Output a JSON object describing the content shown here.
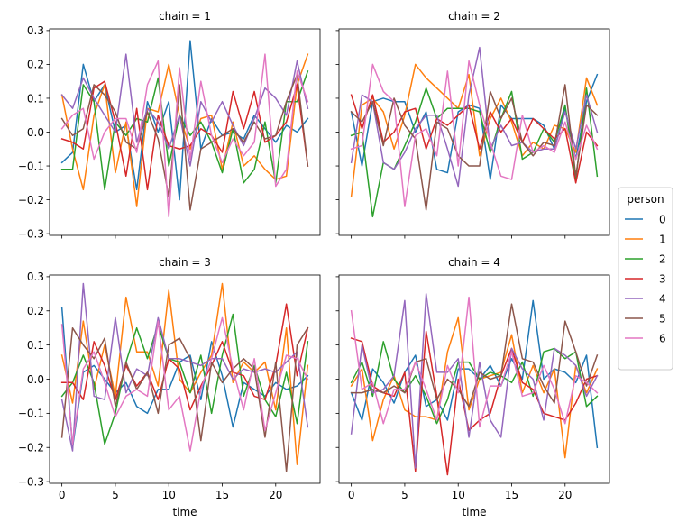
{
  "chart_data": {
    "type": "line",
    "xlabel": "time",
    "xlim": [
      -1.15,
      24.15
    ],
    "ylim": [
      -0.305,
      0.305
    ],
    "x_ticks": [
      0,
      5,
      10,
      15,
      20
    ],
    "y_ticks": [
      -0.3,
      -0.2,
      -0.1,
      0.0,
      0.1,
      0.2,
      0.3
    ],
    "x_tick_labels": [
      "0",
      "5",
      "10",
      "15",
      "20"
    ],
    "y_tick_labels": [
      "−0.3",
      "−0.2",
      "−0.1",
      "0.0",
      "0.1",
      "0.2",
      "0.3"
    ],
    "grid": false,
    "legend": {
      "title": "person",
      "placement": "right",
      "entries": [
        "0",
        "1",
        "2",
        "3",
        "4",
        "5",
        "6"
      ]
    },
    "colors": [
      "#1f77b4",
      "#ff7f0e",
      "#2ca02c",
      "#d62728",
      "#9467bd",
      "#8c564b",
      "#e377c2"
    ],
    "x": [
      0,
      1,
      2,
      3,
      4,
      5,
      6,
      7,
      8,
      9,
      10,
      11,
      12,
      13,
      14,
      15,
      16,
      17,
      18,
      19,
      20,
      21,
      22,
      23
    ],
    "facets": [
      {
        "title": "chain = 1",
        "series": [
          {
            "name": "0",
            "values": [
              -0.09,
              -0.06,
              0.2,
              0.09,
              0.14,
              0.0,
              0.02,
              -0.17,
              0.09,
              0.0,
              0.09,
              -0.2,
              0.27,
              -0.05,
              0.04,
              -0.01,
              0.0,
              -0.02,
              0.05,
              0.01,
              -0.03,
              0.02,
              -0.0,
              0.04
            ]
          },
          {
            "name": "1",
            "values": [
              0.11,
              -0.05,
              -0.17,
              0.05,
              0.14,
              -0.12,
              0.03,
              -0.22,
              0.07,
              0.06,
              0.2,
              0.05,
              -0.05,
              0.04,
              0.05,
              -0.11,
              0.03,
              -0.1,
              -0.07,
              -0.11,
              -0.14,
              -0.13,
              0.14,
              0.23
            ]
          },
          {
            "name": "2",
            "values": [
              -0.11,
              -0.11,
              0.14,
              0.09,
              -0.17,
              0.03,
              -0.01,
              0.04,
              0.03,
              0.16,
              -0.1,
              0.05,
              -0.01,
              0.03,
              -0.03,
              -0.12,
              0.01,
              -0.15,
              -0.11,
              0.03,
              -0.15,
              0.09,
              0.09,
              0.18
            ]
          },
          {
            "name": "3",
            "values": [
              -0.02,
              -0.03,
              -0.05,
              0.13,
              0.15,
              0.03,
              -0.13,
              0.07,
              -0.17,
              0.05,
              -0.04,
              -0.05,
              -0.04,
              0.01,
              -0.01,
              -0.06,
              0.12,
              0.01,
              0.12,
              -0.03,
              -0.01,
              0.03,
              0.14,
              -0.1
            ]
          },
          {
            "name": "4",
            "values": [
              0.11,
              0.07,
              0.16,
              0.1,
              0.05,
              0.0,
              0.23,
              -0.03,
              0.07,
              0.03,
              -0.05,
              0.05,
              -0.1,
              0.09,
              0.03,
              0.09,
              0.02,
              -0.04,
              0.04,
              0.13,
              0.1,
              0.05,
              0.21,
              0.07
            ]
          },
          {
            "name": "5",
            "values": [
              0.04,
              -0.01,
              0.01,
              0.14,
              0.11,
              0.06,
              -0.03,
              -0.05,
              0.06,
              -0.02,
              -0.19,
              0.14,
              -0.23,
              -0.05,
              -0.03,
              -0.01,
              0.01,
              -0.03,
              0.03,
              -0.02,
              -0.01,
              0.09,
              0.17,
              -0.1
            ]
          },
          {
            "name": "6",
            "values": [
              0.01,
              0.05,
              0.07,
              -0.08,
              0.0,
              0.04,
              0.04,
              -0.06,
              0.14,
              0.21,
              -0.25,
              0.19,
              -0.08,
              0.15,
              -0.01,
              -0.09,
              -0.02,
              -0.07,
              -0.03,
              0.23,
              -0.16,
              -0.11,
              0.18,
              0.09
            ]
          }
        ]
      },
      {
        "title": "chain = 2",
        "series": [
          {
            "name": "0",
            "values": [
              0.06,
              -0.1,
              0.09,
              0.1,
              0.09,
              0.09,
              0.0,
              0.06,
              -0.11,
              -0.12,
              0.06,
              0.08,
              0.07,
              -0.14,
              0.08,
              0.04,
              0.04,
              0.04,
              0.02,
              -0.05,
              0.07,
              -0.08,
              0.09,
              0.17
            ]
          },
          {
            "name": "1",
            "values": [
              -0.19,
              0.08,
              0.1,
              0.06,
              -0.05,
              0.05,
              0.2,
              0.16,
              0.13,
              0.1,
              0.07,
              0.17,
              -0.07,
              0.04,
              0.1,
              0.03,
              -0.07,
              -0.03,
              -0.05,
              0.02,
              0.01,
              -0.06,
              0.16,
              0.08
            ]
          },
          {
            "name": "2",
            "values": [
              -0.01,
              -0.0,
              -0.25,
              -0.09,
              -0.11,
              -0.04,
              0.03,
              0.13,
              0.04,
              0.07,
              0.07,
              0.07,
              0.06,
              -0.06,
              0.04,
              0.12,
              -0.08,
              -0.06,
              0.01,
              -0.03,
              0.08,
              -0.14,
              0.13,
              -0.13
            ]
          },
          {
            "name": "3",
            "values": [
              0.11,
              0.01,
              0.11,
              -0.03,
              -0.0,
              0.06,
              0.07,
              -0.05,
              0.04,
              0.02,
              0.05,
              0.08,
              -0.05,
              0.06,
              0.0,
              0.04,
              -0.03,
              0.04,
              0.01,
              -0.02,
              0.01,
              -0.15,
              0.0,
              -0.04
            ]
          },
          {
            "name": "4",
            "values": [
              -0.09,
              0.11,
              0.09,
              -0.09,
              -0.11,
              -0.06,
              0.01,
              0.05,
              0.05,
              -0.05,
              -0.16,
              0.11,
              0.25,
              -0.05,
              0.02,
              -0.04,
              -0.03,
              -0.06,
              -0.05,
              -0.05,
              0.06,
              -0.05,
              0.11,
              0.0
            ]
          },
          {
            "name": "5",
            "values": [
              0.06,
              0.03,
              0.09,
              -0.04,
              0.1,
              0.02,
              -0.02,
              -0.23,
              0.03,
              0.01,
              -0.07,
              -0.1,
              -0.1,
              0.12,
              0.04,
              0.1,
              -0.03,
              -0.07,
              -0.03,
              -0.04,
              0.14,
              -0.13,
              0.08,
              0.05
            ]
          },
          {
            "name": "6",
            "values": [
              -0.05,
              -0.04,
              0.2,
              0.12,
              0.09,
              -0.22,
              -0.01,
              0.01,
              -0.07,
              0.18,
              -0.1,
              0.21,
              0.08,
              -0.03,
              -0.13,
              -0.14,
              0.05,
              -0.06,
              -0.04,
              -0.06,
              0.03,
              -0.08,
              0.02,
              -0.05
            ]
          }
        ]
      },
      {
        "title": "chain = 3",
        "series": [
          {
            "name": "0",
            "values": [
              0.21,
              -0.2,
              0.02,
              0.04,
              0.0,
              -0.04,
              -0.01,
              -0.08,
              -0.1,
              -0.03,
              -0.03,
              0.05,
              0.07,
              -0.06,
              0.11,
              0.01,
              -0.14,
              -0.01,
              -0.03,
              -0.05,
              -0.01,
              -0.03,
              -0.02,
              0.01
            ]
          },
          {
            "name": "1",
            "values": [
              0.07,
              -0.07,
              0.17,
              -0.03,
              0.1,
              -0.05,
              0.24,
              0.08,
              0.08,
              -0.02,
              0.26,
              0.0,
              -0.04,
              0.02,
              0.07,
              0.28,
              -0.01,
              0.05,
              0.02,
              0.05,
              -0.09,
              0.15,
              -0.25,
              0.04
            ]
          },
          {
            "name": "2",
            "values": [
              -0.05,
              -0.01,
              0.07,
              -0.01,
              -0.19,
              -0.1,
              0.05,
              0.15,
              0.06,
              0.16,
              0.06,
              0.05,
              -0.04,
              0.07,
              -0.1,
              0.07,
              0.19,
              -0.05,
              0.04,
              -0.06,
              -0.11,
              0.02,
              -0.13,
              0.11
            ]
          },
          {
            "name": "3",
            "values": [
              -0.01,
              -0.01,
              -0.06,
              0.11,
              0.04,
              -0.06,
              0.04,
              -0.02,
              0.02,
              -0.06,
              0.06,
              0.03,
              -0.09,
              -0.02,
              0.04,
              0.11,
              0.02,
              0.01,
              -0.05,
              -0.06,
              0.04,
              0.22,
              0.01,
              0.15
            ]
          },
          {
            "name": "4",
            "values": [
              -0.06,
              -0.21,
              0.28,
              -0.05,
              -0.06,
              0.18,
              -0.04,
              0.03,
              0.01,
              0.18,
              0.06,
              0.06,
              0.05,
              0.04,
              0.06,
              0.06,
              0.0,
              0.03,
              0.02,
              0.03,
              0.02,
              0.05,
              0.08,
              -0.14
            ]
          },
          {
            "name": "5",
            "values": [
              -0.17,
              0.15,
              0.1,
              0.06,
              0.12,
              -0.08,
              0.05,
              -0.03,
              0.02,
              -0.1,
              0.1,
              0.12,
              0.06,
              -0.18,
              0.05,
              -0.01,
              0.03,
              0.06,
              0.03,
              -0.17,
              0.05,
              -0.27,
              0.1,
              0.15
            ]
          },
          {
            "name": "6",
            "values": [
              0.16,
              -0.19,
              0.03,
              0.08,
              -0.01,
              -0.11,
              -0.05,
              -0.03,
              -0.05,
              0.17,
              -0.09,
              -0.05,
              -0.21,
              -0.03,
              0.06,
              0.18,
              0.03,
              -0.09,
              0.06,
              -0.15,
              -0.04,
              0.07,
              0.06,
              0.0
            ]
          }
        ]
      },
      {
        "title": "chain = 4",
        "series": [
          {
            "name": "0",
            "values": [
              -0.04,
              -0.12,
              0.03,
              -0.01,
              -0.07,
              0.02,
              0.07,
              -0.08,
              -0.06,
              -0.12,
              0.03,
              0.03,
              0.0,
              0.04,
              -0.02,
              0.06,
              0.0,
              0.23,
              0.0,
              0.03,
              0.02,
              -0.01,
              0.07,
              -0.2
            ]
          },
          {
            "name": "1",
            "values": [
              -0.02,
              0.03,
              -0.18,
              -0.06,
              0.01,
              -0.09,
              -0.11,
              -0.11,
              -0.12,
              0.08,
              0.18,
              -0.09,
              0.0,
              0.01,
              0.02,
              0.13,
              -0.04,
              0.04,
              -0.04,
              0.03,
              -0.23,
              0.04,
              -0.04,
              0.03
            ]
          },
          {
            "name": "2",
            "values": [
              -0.01,
              0.05,
              -0.05,
              0.11,
              0.0,
              -0.04,
              0.01,
              -0.05,
              -0.13,
              -0.06,
              0.05,
              0.05,
              0.0,
              0.02,
              0.01,
              -0.01,
              0.05,
              -0.05,
              0.08,
              0.09,
              0.06,
              0.08,
              -0.08,
              -0.05
            ]
          },
          {
            "name": "3",
            "values": [
              0.12,
              0.11,
              -0.02,
              -0.04,
              -0.05,
              0.02,
              -0.27,
              0.14,
              -0.05,
              -0.28,
              0.0,
              -0.15,
              -0.12,
              -0.1,
              0.01,
              0.09,
              -0.01,
              -0.03,
              -0.1,
              -0.11,
              -0.12,
              -0.07,
              0.0,
              0.01
            ]
          },
          {
            "name": "4",
            "values": [
              -0.16,
              0.1,
              -0.04,
              -0.03,
              0.01,
              0.23,
              -0.26,
              0.25,
              0.02,
              0.02,
              0.06,
              -0.17,
              0.05,
              -0.12,
              -0.17,
              0.09,
              0.03,
              0.0,
              -0.12,
              0.09,
              0.07,
              0.04,
              -0.05,
              0.01
            ]
          },
          {
            "name": "5",
            "values": [
              -0.04,
              -0.04,
              -0.03,
              -0.04,
              -0.02,
              -0.04,
              0.05,
              0.06,
              -0.06,
              0.0,
              -0.03,
              -0.08,
              0.02,
              0.0,
              0.01,
              0.22,
              0.06,
              0.05,
              -0.02,
              -0.07,
              0.17,
              0.08,
              -0.02,
              0.07
            ]
          },
          {
            "name": "6",
            "values": [
              0.2,
              -0.03,
              -0.01,
              -0.13,
              -0.03,
              -0.03,
              0.05,
              -0.03,
              -0.12,
              0.04,
              -0.04,
              0.24,
              -0.14,
              -0.02,
              -0.02,
              0.08,
              -0.05,
              -0.04,
              0.04,
              -0.03,
              -0.13,
              0.01,
              -0.01,
              -0.04
            ]
          }
        ]
      }
    ]
  }
}
